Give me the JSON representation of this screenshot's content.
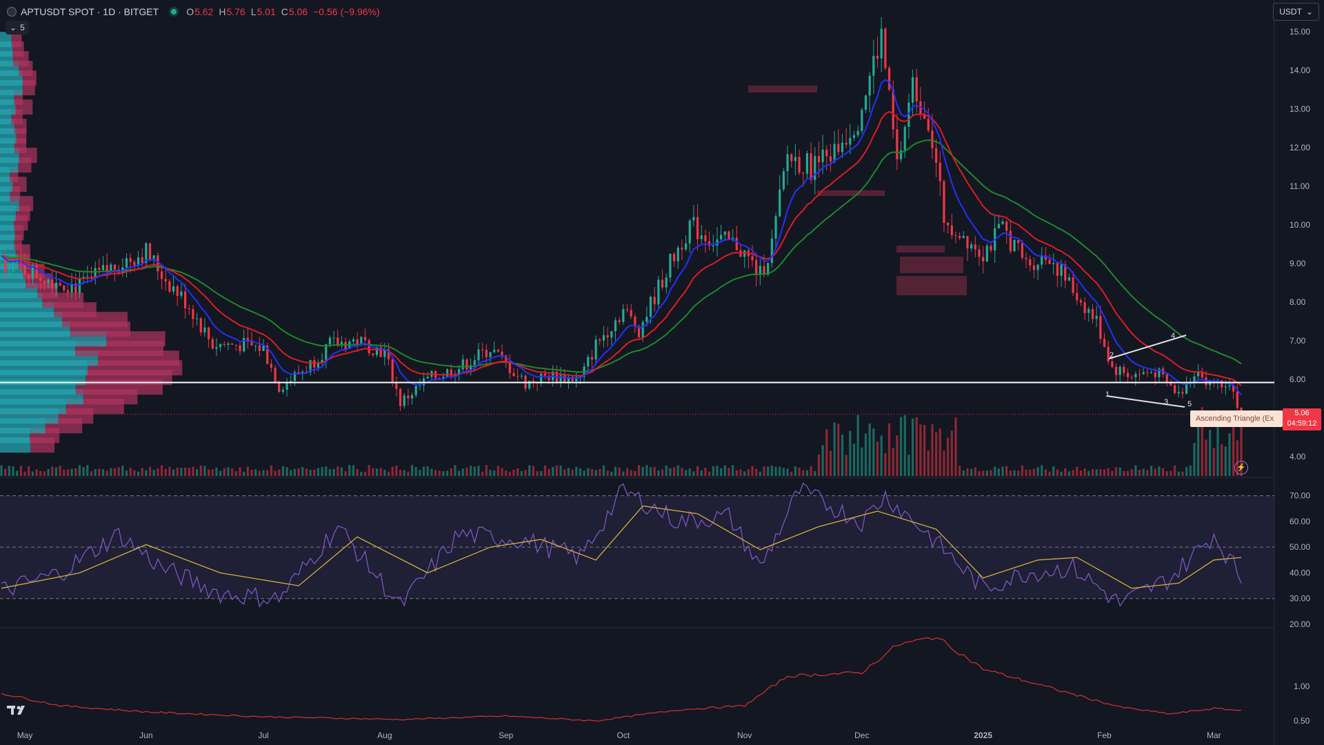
{
  "header": {
    "symbol_line": "APTUSDT SPOT · 1D · BITGET",
    "ohlc": [
      {
        "key": "O",
        "value": "5.62"
      },
      {
        "key": "H",
        "value": "5.76"
      },
      {
        "key": "L",
        "value": "5.01"
      },
      {
        "key": "C",
        "value": "5.06"
      }
    ],
    "change": "−0.56 (−9.96%)",
    "indicator_count": "5",
    "currency": "USDT"
  },
  "price_tag": {
    "price": "5.06",
    "countdown": "04:59:12"
  },
  "pattern_label": "Ascending Triangle (Ex",
  "pattern_points": [
    "1",
    "2",
    "3",
    "4",
    "5"
  ],
  "colors": {
    "background": "#131722",
    "up": "#22ab94",
    "down": "#f23645",
    "ema_fast": "#2430ff",
    "ema_mid": "#e01b24",
    "ema_slow": "#1b8a2a",
    "rsi": "#7e57c2",
    "rsi_ma": "#d4b13b",
    "lower_indicator": "#c9302c"
  },
  "chart_data": {
    "type": "candlestick",
    "x_ticks": [
      "May",
      "Jun",
      "Jul",
      "Aug",
      "Sep",
      "Oct",
      "Nov",
      "Dec",
      "2025",
      "Feb",
      "Mar"
    ],
    "y_ticks": [
      "15.00",
      "14.00",
      "13.00",
      "12.00",
      "11.00",
      "10.00",
      "9.00",
      "8.00",
      "7.00",
      "6.00",
      "4.00"
    ],
    "price_range": [
      3.5,
      15.5
    ],
    "horizontal_line": 5.92,
    "last_price": 5.06,
    "price_path": [
      [
        "2024-04-25",
        9.1
      ],
      [
        "2024-05-05",
        8.7
      ],
      [
        "2024-05-15",
        8.4
      ],
      [
        "2024-05-25",
        9.0
      ],
      [
        "2024-06-01",
        9.3
      ],
      [
        "2024-06-06",
        8.6
      ],
      [
        "2024-06-12",
        7.9
      ],
      [
        "2024-06-18",
        6.9
      ],
      [
        "2024-06-25",
        6.9
      ],
      [
        "2024-07-01",
        6.8
      ],
      [
        "2024-07-05",
        5.8
      ],
      [
        "2024-07-12",
        6.3
      ],
      [
        "2024-07-18",
        6.9
      ],
      [
        "2024-07-25",
        7.0
      ],
      [
        "2024-08-01",
        6.7
      ],
      [
        "2024-08-05",
        5.4
      ],
      [
        "2024-08-12",
        6.0
      ],
      [
        "2024-08-20",
        6.3
      ],
      [
        "2024-08-28",
        6.8
      ],
      [
        "2024-09-06",
        5.9
      ],
      [
        "2024-09-12",
        6.1
      ],
      [
        "2024-09-20",
        6.0
      ],
      [
        "2024-09-24",
        6.9
      ],
      [
        "2024-10-01",
        7.8
      ],
      [
        "2024-10-05",
        7.3
      ],
      [
        "2024-10-12",
        8.8
      ],
      [
        "2024-10-18",
        10.0
      ],
      [
        "2024-10-24",
        9.6
      ],
      [
        "2024-10-30",
        9.5
      ],
      [
        "2024-11-05",
        8.7
      ],
      [
        "2024-11-08",
        9.5
      ],
      [
        "2024-11-12",
        11.8
      ],
      [
        "2024-11-18",
        11.5
      ],
      [
        "2024-11-24",
        11.9
      ],
      [
        "2024-11-30",
        12.8
      ],
      [
        "2024-12-06",
        14.9
      ],
      [
        "2024-12-10",
        11.5
      ],
      [
        "2024-12-14",
        13.6
      ],
      [
        "2024-12-18",
        12.8
      ],
      [
        "2024-12-22",
        10.2
      ],
      [
        "2025-01-01",
        9.3
      ],
      [
        "2025-01-06",
        9.9
      ],
      [
        "2025-01-12",
        9.0
      ],
      [
        "2025-01-18",
        9.2
      ],
      [
        "2025-01-24",
        8.3
      ],
      [
        "2025-01-30",
        7.5
      ],
      [
        "2025-02-03",
        6.3
      ],
      [
        "2025-02-08",
        6.1
      ],
      [
        "2025-02-14",
        6.2
      ],
      [
        "2025-02-20",
        5.6
      ],
      [
        "2025-02-24",
        6.2
      ],
      [
        "2025-03-01",
        5.9
      ],
      [
        "2025-03-05",
        6.0
      ],
      [
        "2025-03-08",
        5.06
      ]
    ],
    "rsi": {
      "y_ticks": [
        "70.00",
        "60.00",
        "50.00",
        "40.00",
        "30.00",
        "20.00"
      ],
      "band": [
        30,
        70
      ],
      "path": [
        [
          "2024-04-25",
          33
        ],
        [
          "2024-05-10",
          40
        ],
        [
          "2024-05-25",
          55
        ],
        [
          "2024-06-05",
          42
        ],
        [
          "2024-06-20",
          32
        ],
        [
          "2024-07-05",
          30
        ],
        [
          "2024-07-20",
          58
        ],
        [
          "2024-08-05",
          27
        ],
        [
          "2024-08-20",
          55
        ],
        [
          "2024-09-05",
          53
        ],
        [
          "2024-09-20",
          46
        ],
        [
          "2024-10-01",
          72
        ],
        [
          "2024-10-15",
          60
        ],
        [
          "2024-10-28",
          62
        ],
        [
          "2024-11-05",
          42
        ],
        [
          "2024-11-15",
          72
        ],
        [
          "2024-12-01",
          60
        ],
        [
          "2024-12-07",
          70
        ],
        [
          "2024-12-18",
          55
        ],
        [
          "2025-01-01",
          34
        ],
        [
          "2025-01-12",
          40
        ],
        [
          "2025-01-24",
          42
        ],
        [
          "2025-02-05",
          28
        ],
        [
          "2025-02-18",
          38
        ],
        [
          "2025-03-01",
          55
        ],
        [
          "2025-03-08",
          38
        ]
      ],
      "ma_path": [
        [
          "2024-04-25",
          34
        ],
        [
          "2024-05-15",
          40
        ],
        [
          "2024-06-01",
          51
        ],
        [
          "2024-06-20",
          40
        ],
        [
          "2024-07-10",
          35
        ],
        [
          "2024-07-25",
          54
        ],
        [
          "2024-08-12",
          40
        ],
        [
          "2024-08-28",
          50
        ],
        [
          "2024-09-10",
          53
        ],
        [
          "2024-09-24",
          45
        ],
        [
          "2024-10-06",
          66
        ],
        [
          "2024-10-20",
          63
        ],
        [
          "2024-11-05",
          49
        ],
        [
          "2024-11-20",
          58
        ],
        [
          "2024-12-05",
          64
        ],
        [
          "2024-12-20",
          57
        ],
        [
          "2025-01-01",
          38
        ],
        [
          "2025-01-15",
          45
        ],
        [
          "2025-01-25",
          46
        ],
        [
          "2025-02-08",
          34
        ],
        [
          "2025-02-20",
          36
        ],
        [
          "2025-03-01",
          45
        ],
        [
          "2025-03-08",
          46
        ]
      ]
    },
    "lower_indicator": {
      "y_ticks": [
        "1.00",
        "0.50"
      ],
      "path": [
        [
          "2024-04-25",
          0.9
        ],
        [
          "2024-05-10",
          0.72
        ],
        [
          "2024-06-01",
          0.63
        ],
        [
          "2024-07-01",
          0.56
        ],
        [
          "2024-08-05",
          0.52
        ],
        [
          "2024-09-01",
          0.57
        ],
        [
          "2024-09-24",
          0.5
        ],
        [
          "2024-10-15",
          0.66
        ],
        [
          "2024-11-01",
          0.72
        ],
        [
          "2024-11-12",
          1.15
        ],
        [
          "2024-12-01",
          1.2
        ],
        [
          "2024-12-10",
          1.6
        ],
        [
          "2024-12-20",
          1.72
        ],
        [
          "2025-01-01",
          1.25
        ],
        [
          "2025-01-20",
          0.95
        ],
        [
          "2025-02-05",
          0.7
        ],
        [
          "2025-02-18",
          0.6
        ],
        [
          "2025-03-01",
          0.68
        ],
        [
          "2025-03-08",
          0.65
        ]
      ]
    }
  }
}
